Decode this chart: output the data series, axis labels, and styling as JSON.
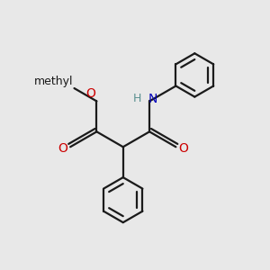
{
  "background_color": "#e8e8e8",
  "bond_color": "#1a1a1a",
  "oxygen_color": "#cc0000",
  "nitrogen_color": "#0000bb",
  "hydrogen_color": "#5a9090",
  "line_width": 1.6,
  "dbo": 0.013,
  "figsize": [
    3.0,
    3.0
  ],
  "dpi": 100,
  "methyl_text": "methyl",
  "O_label": "O",
  "N_label": "N",
  "H_label": "H"
}
